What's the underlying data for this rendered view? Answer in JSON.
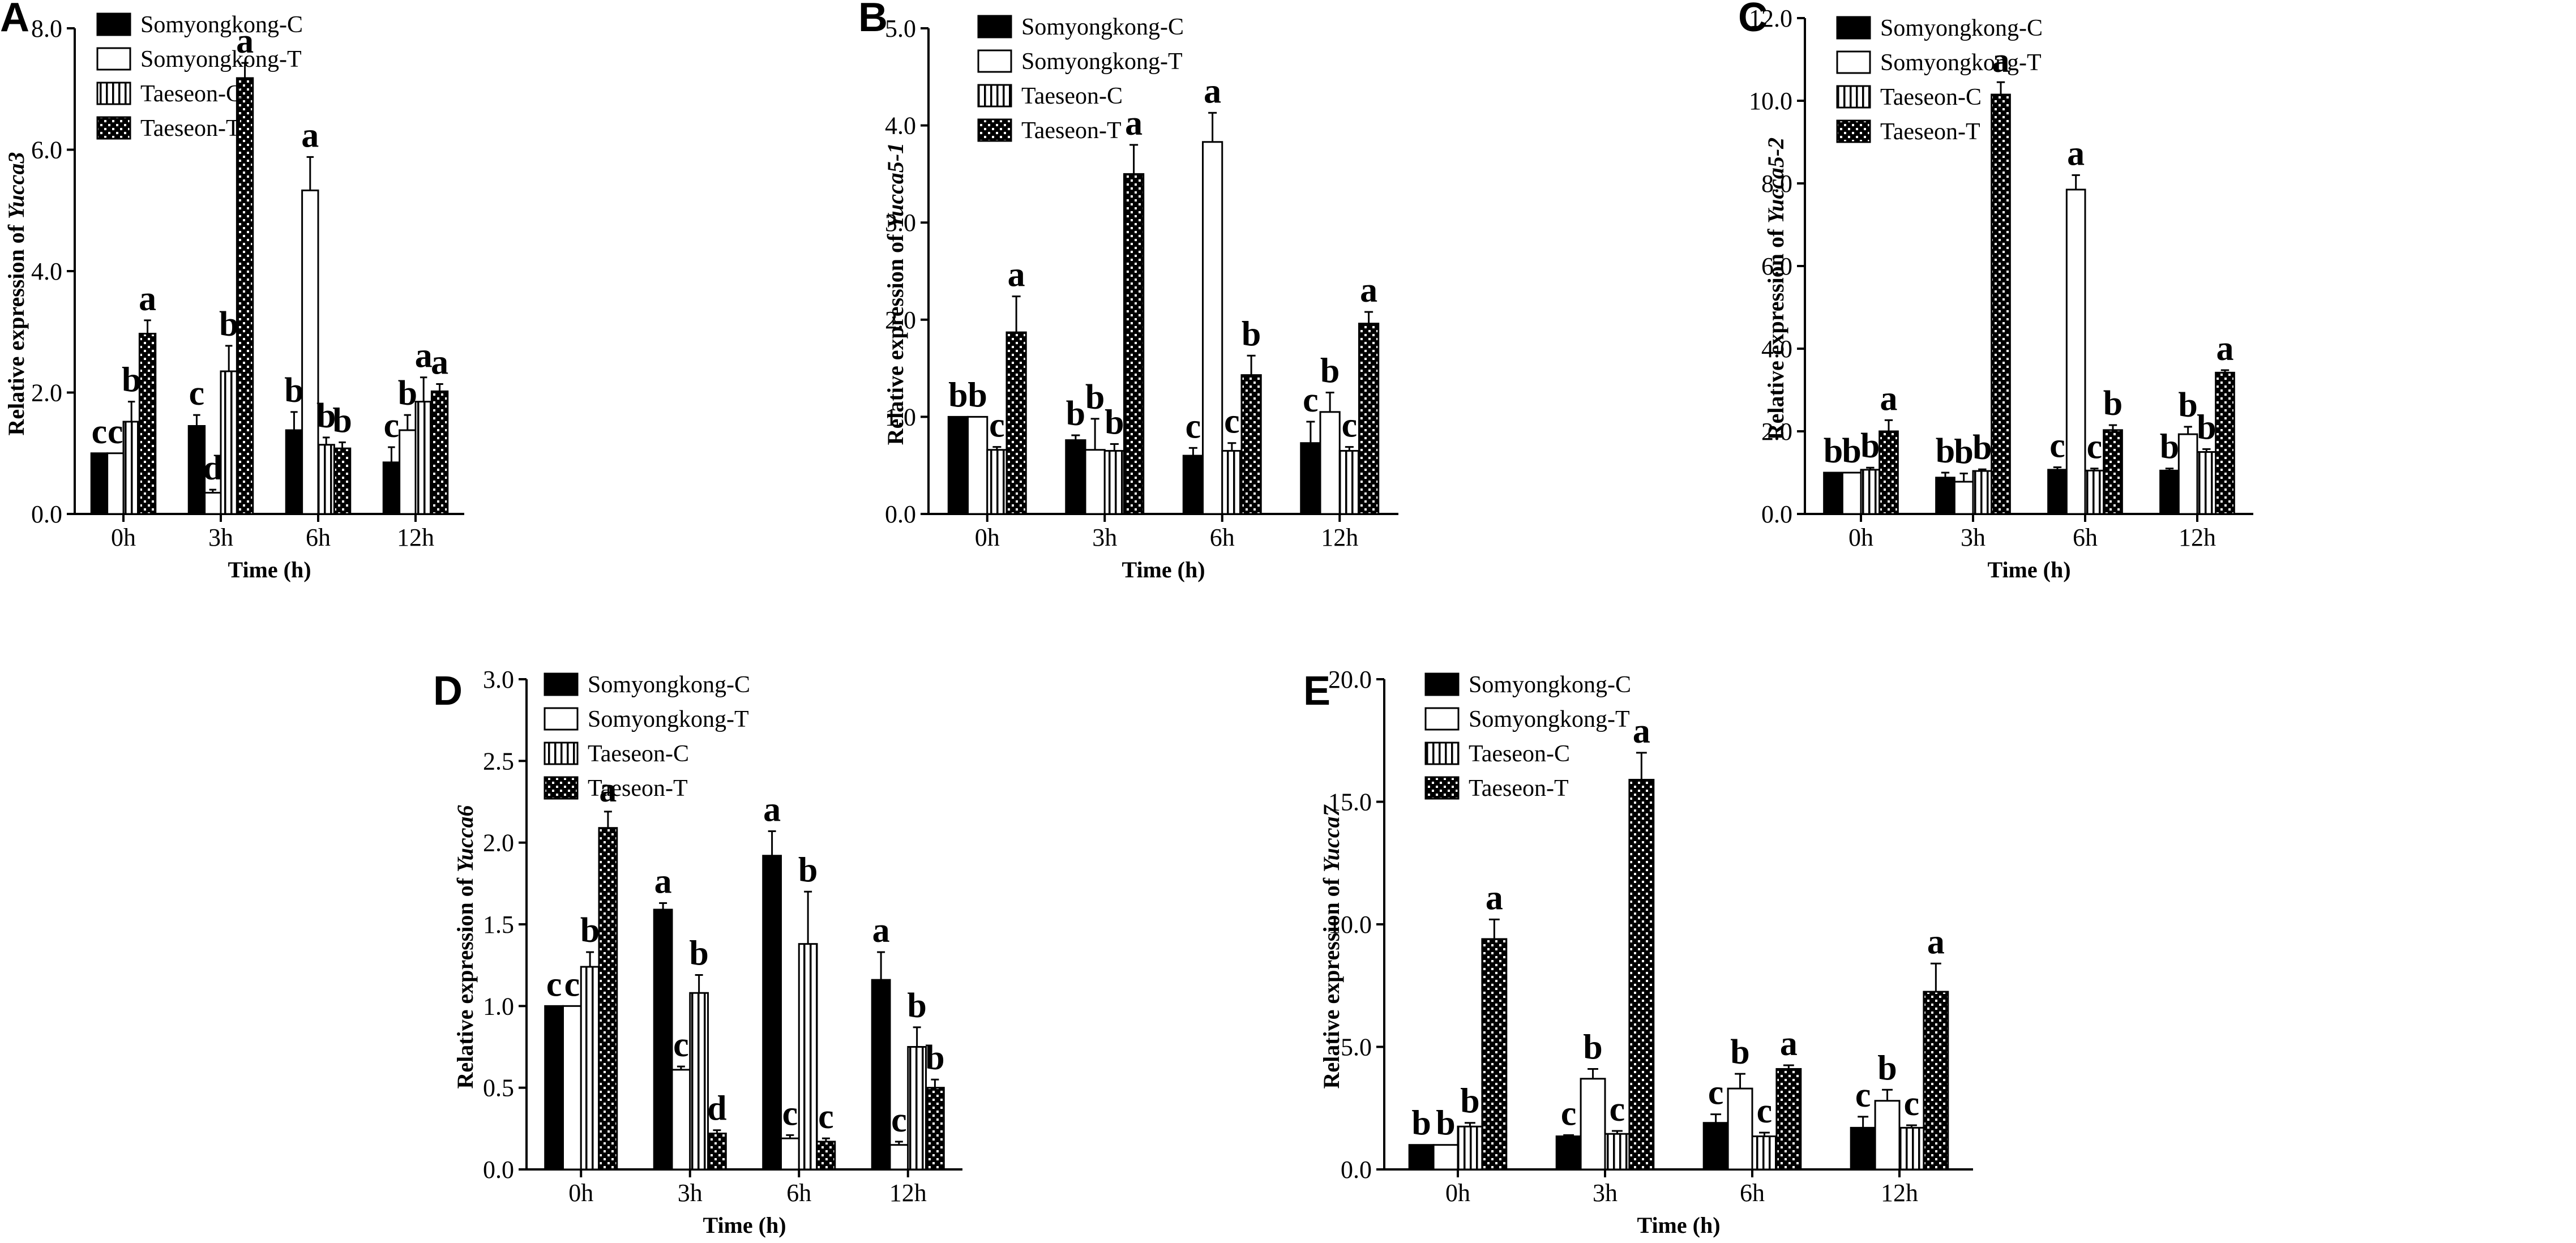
{
  "colors": {
    "ink": "#000000",
    "paper": "#ffffff"
  },
  "series_styles": [
    "solid-black",
    "white-outline",
    "vertical-stripes",
    "checker"
  ],
  "chart_data": [
    {
      "panel": "A",
      "type": "bar",
      "title": "",
      "xlabel": "Time (h)",
      "ylabel_prefix": "Relative expression of ",
      "gene": "Yucca3",
      "categories": [
        "0h",
        "3h",
        "6h",
        "12h"
      ],
      "ylim": [
        0,
        8
      ],
      "yticks": [
        "0.0",
        "2.0",
        "4.0",
        "6.0",
        "8.0"
      ],
      "ytick_values": [
        0,
        2,
        4,
        6,
        8
      ],
      "legend": [
        "Somyongkong-C",
        "Somyongkong-T",
        "Taeseon-C",
        "Taeseon-T"
      ],
      "series": [
        {
          "name": "Somyongkong-C",
          "values": [
            1.0,
            1.45,
            1.38,
            0.85
          ],
          "errors": [
            0,
            0.18,
            0.3,
            0.25
          ],
          "letters": [
            "c",
            "c",
            "b",
            "c"
          ]
        },
        {
          "name": "Somyongkong-T",
          "values": [
            1.0,
            0.35,
            5.33,
            1.38
          ],
          "errors": [
            0,
            0.05,
            0.55,
            0.25
          ],
          "letters": [
            "c",
            "d",
            "a",
            "b"
          ]
        },
        {
          "name": "Taeseon-C",
          "values": [
            1.52,
            2.35,
            1.14,
            1.85
          ],
          "errors": [
            0.33,
            0.42,
            0.12,
            0.4
          ],
          "letters": [
            "b",
            "b",
            "b",
            "a"
          ]
        },
        {
          "name": "Taeseon-T",
          "values": [
            2.97,
            7.18,
            1.08,
            2.02
          ],
          "errors": [
            0.22,
            0.25,
            0.1,
            0.12
          ],
          "letters": [
            "a",
            "a",
            "b",
            "a"
          ]
        }
      ]
    },
    {
      "panel": "B",
      "type": "bar",
      "title": "",
      "xlabel": "Time (h)",
      "ylabel_prefix": "Relative expression of ",
      "gene": "Yucca5-1",
      "categories": [
        "0h",
        "3h",
        "6h",
        "12h"
      ],
      "ylim": [
        0,
        5
      ],
      "yticks": [
        "0.0",
        "1.0",
        "2.0",
        "3.0",
        "4.0",
        "5.0"
      ],
      "ytick_values": [
        0,
        1,
        2,
        3,
        4,
        5
      ],
      "legend": [
        "Somyongkong-C",
        "Somyongkong-T",
        "Taeseon-C",
        "Taeseon-T"
      ],
      "series": [
        {
          "name": "Somyongkong-C",
          "values": [
            1.0,
            0.76,
            0.6,
            0.73
          ],
          "errors": [
            0,
            0.05,
            0.08,
            0.22
          ],
          "letters": [
            "b",
            "b",
            "c",
            "c"
          ]
        },
        {
          "name": "Somyongkong-T",
          "values": [
            1.0,
            0.66,
            3.83,
            1.05
          ],
          "errors": [
            0,
            0.32,
            0.3,
            0.2
          ],
          "letters": [
            "b",
            "b",
            "a",
            "b"
          ]
        },
        {
          "name": "Taeseon-C",
          "values": [
            0.66,
            0.65,
            0.65,
            0.65
          ],
          "errors": [
            0.03,
            0.07,
            0.08,
            0.04
          ],
          "letters": [
            "c",
            "b",
            "c",
            "c"
          ]
        },
        {
          "name": "Taeseon-T",
          "values": [
            1.87,
            3.5,
            1.43,
            1.96
          ],
          "errors": [
            0.37,
            0.3,
            0.2,
            0.12
          ],
          "letters": [
            "a",
            "a",
            "b",
            "a"
          ]
        }
      ]
    },
    {
      "panel": "C",
      "type": "bar",
      "title": "",
      "xlabel": "Time (h)",
      "ylabel_prefix": "Relative expression of ",
      "gene": "Yucca5-2",
      "categories": [
        "0h",
        "3h",
        "6h",
        "12h"
      ],
      "ylim": [
        0,
        12
      ],
      "yticks": [
        "0.0",
        "2.0",
        "4.0",
        "6.0",
        "8.0",
        "10.0",
        "12.0"
      ],
      "ytick_values": [
        0,
        2,
        4,
        6,
        8,
        10,
        12
      ],
      "legend": [
        "Somyongkong-C",
        "Somyongkong-T",
        "Taeseon-C",
        "Taeseon-T"
      ],
      "series": [
        {
          "name": "Somyongkong-C",
          "values": [
            1.0,
            0.88,
            1.07,
            1.05
          ],
          "errors": [
            0,
            0.12,
            0.06,
            0.05
          ],
          "letters": [
            "b",
            "b",
            "c",
            "b"
          ]
        },
        {
          "name": "Somyongkong-T",
          "values": [
            1.0,
            0.78,
            7.85,
            1.93
          ],
          "errors": [
            0,
            0.2,
            0.35,
            0.18
          ],
          "letters": [
            "b",
            "b",
            "a",
            "b"
          ]
        },
        {
          "name": "Taeseon-C",
          "values": [
            1.07,
            1.04,
            1.05,
            1.5
          ],
          "errors": [
            0.05,
            0.04,
            0.05,
            0.07
          ],
          "letters": [
            "b",
            "b",
            "c",
            "b"
          ]
        },
        {
          "name": "Taeseon-T",
          "values": [
            2.0,
            10.15,
            2.03,
            3.42
          ],
          "errors": [
            0.27,
            0.3,
            0.12,
            0.06
          ],
          "letters": [
            "a",
            "a",
            "b",
            "a"
          ]
        }
      ]
    },
    {
      "panel": "D",
      "type": "bar",
      "title": "",
      "xlabel": "Time (h)",
      "ylabel_prefix": "Relative expression of ",
      "gene": "Yucca6",
      "categories": [
        "0h",
        "3h",
        "6h",
        "12h"
      ],
      "ylim": [
        0,
        3
      ],
      "yticks": [
        "0.0",
        "0.5",
        "1.0",
        "1.5",
        "2.0",
        "2.5",
        "3.0"
      ],
      "ytick_values": [
        0,
        0.5,
        1,
        1.5,
        2,
        2.5,
        3
      ],
      "legend": [
        "Somyongkong-C",
        "Somyongkong-T",
        "Taeseon-C",
        "Taeseon-T"
      ],
      "series": [
        {
          "name": "Somyongkong-C",
          "values": [
            1.0,
            1.59,
            1.92,
            1.16
          ],
          "errors": [
            0,
            0.04,
            0.15,
            0.17
          ],
          "letters": [
            "c",
            "a",
            "a",
            "a"
          ]
        },
        {
          "name": "Somyongkong-T",
          "values": [
            1.0,
            0.61,
            0.19,
            0.15
          ],
          "errors": [
            0,
            0.02,
            0.02,
            0.02
          ],
          "letters": [
            "c",
            "c",
            "c",
            "c"
          ]
        },
        {
          "name": "Taeseon-C",
          "values": [
            1.24,
            1.08,
            1.38,
            0.75
          ],
          "errors": [
            0.09,
            0.11,
            0.32,
            0.12
          ],
          "letters": [
            "b",
            "b",
            "b",
            "b"
          ]
        },
        {
          "name": "Taeseon-T",
          "values": [
            2.09,
            0.22,
            0.17,
            0.5
          ],
          "errors": [
            0.1,
            0.02,
            0.02,
            0.05
          ],
          "letters": [
            "a",
            "d",
            "c",
            "b"
          ]
        }
      ]
    },
    {
      "panel": "E",
      "type": "bar",
      "title": "",
      "xlabel": "Time (h)",
      "ylabel_prefix": "Relative expression of ",
      "gene": "Yucca7",
      "categories": [
        "0h",
        "3h",
        "6h",
        "12h"
      ],
      "ylim": [
        0,
        20
      ],
      "yticks": [
        "0.0",
        "5.0",
        "10.0",
        "15.0",
        "20.0"
      ],
      "ytick_values": [
        0,
        5,
        10,
        15,
        20
      ],
      "legend": [
        "Somyongkong-C",
        "Somyongkong-T",
        "Taeseon-C",
        "Taeseon-T"
      ],
      "series": [
        {
          "name": "Somyongkong-C",
          "values": [
            1.0,
            1.35,
            1.9,
            1.7
          ],
          "errors": [
            0,
            0.05,
            0.35,
            0.45
          ],
          "letters": [
            "b",
            "c",
            "c",
            "c"
          ]
        },
        {
          "name": "Somyongkong-T",
          "values": [
            1.0,
            3.7,
            3.3,
            2.8
          ],
          "errors": [
            0,
            0.4,
            0.6,
            0.45
          ],
          "letters": [
            "b",
            "b",
            "b",
            "b"
          ]
        },
        {
          "name": "Taeseon-C",
          "values": [
            1.75,
            1.45,
            1.35,
            1.7
          ],
          "errors": [
            0.15,
            0.12,
            0.15,
            0.1
          ],
          "letters": [
            "b",
            "c",
            "c",
            "c"
          ]
        },
        {
          "name": "Taeseon-T",
          "values": [
            9.4,
            15.9,
            4.1,
            7.25
          ],
          "errors": [
            0.8,
            1.1,
            0.15,
            1.15
          ],
          "letters": [
            "a",
            "a",
            "a",
            "a"
          ]
        }
      ]
    }
  ]
}
